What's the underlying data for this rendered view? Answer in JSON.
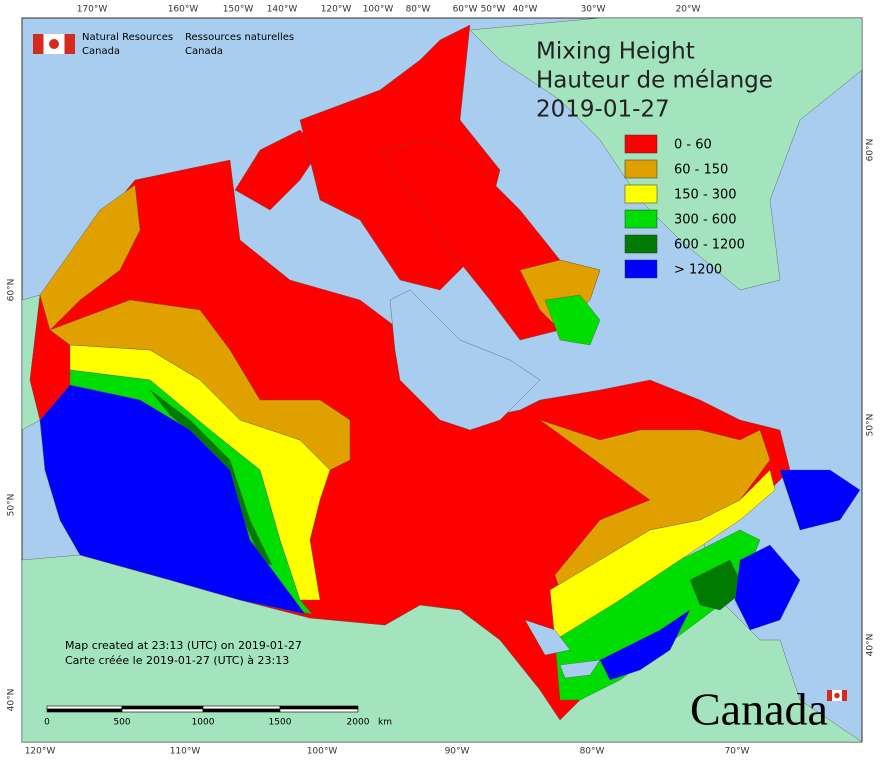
{
  "agency": {
    "en": [
      "Natural Resources",
      "Canada"
    ],
    "fr": [
      "Ressources naturelles",
      "Canada"
    ]
  },
  "title": [
    "Mixing Height",
    "Hauteur de mélange",
    "2019-01-27"
  ],
  "legend": [
    {
      "label": "0 - 60",
      "color": "#ff0000"
    },
    {
      "label": "60 - 150",
      "color": "#e0a000"
    },
    {
      "label": "150 - 300",
      "color": "#ffff00"
    },
    {
      "label": "300 - 600",
      "color": "#00dd00"
    },
    {
      "label": "600 - 1200",
      "color": "#007a00"
    },
    {
      "label": "> 1200",
      "color": "#0000ff"
    }
  ],
  "top_labels": [
    "170°W",
    "160°W",
    "150°W",
    "140°W",
    "120°W",
    "100°W",
    "80°W",
    "60°W",
    "50°W",
    "40°W",
    "30°W",
    "20°W"
  ],
  "bottom_labels": [
    "120°W",
    "110°W",
    "100°W",
    "90°W",
    "80°W",
    "70°W"
  ],
  "left_labels": [
    "60°N",
    "50°N",
    "40°N"
  ],
  "right_labels": [
    "60°N",
    "50°N",
    "40°N"
  ],
  "credits": [
    "Map created at 23:13 (UTC) on 2019-01-27",
    "Carte créée le 2019-01-27 (UTC) à 23:13"
  ],
  "scale": {
    "labels": [
      "0",
      "500",
      "1000",
      "1500",
      "2000"
    ],
    "unit": "km"
  },
  "wordmark": "Canada"
}
